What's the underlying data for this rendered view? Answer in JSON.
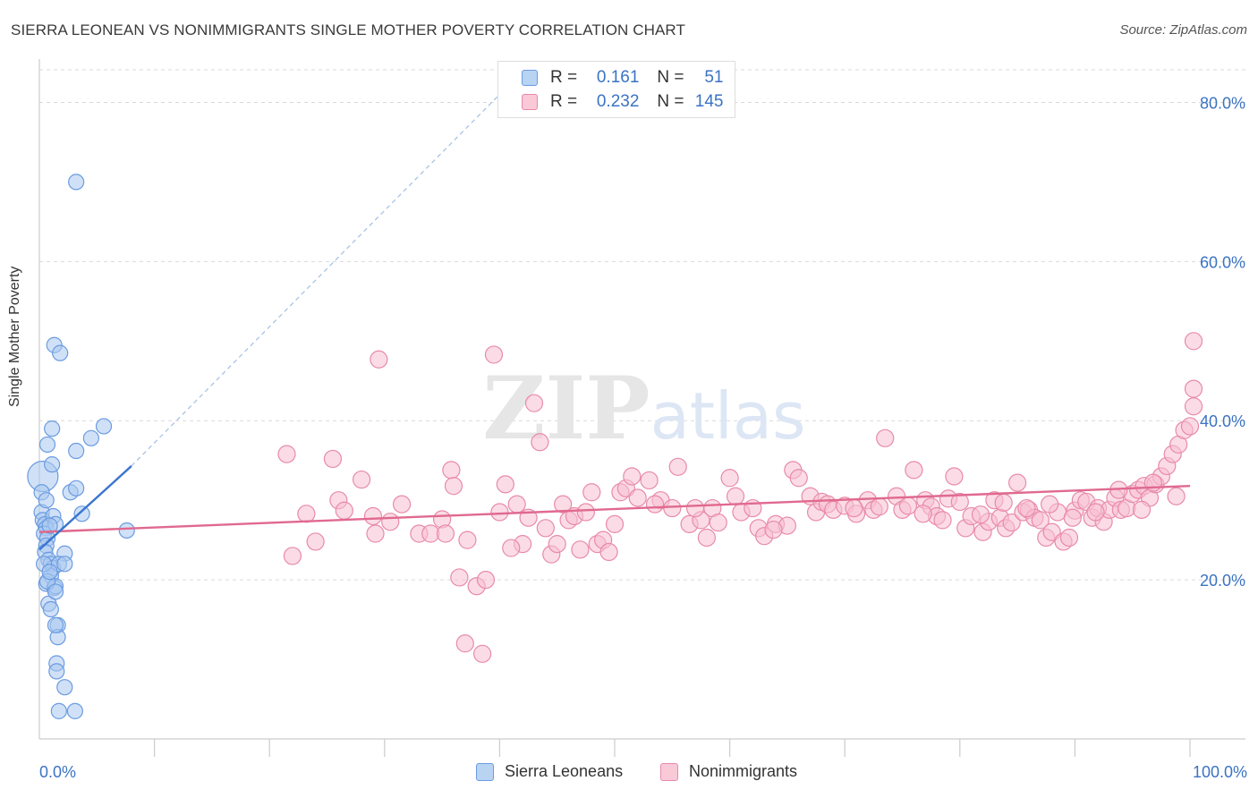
{
  "title": "SIERRA LEONEAN VS NONIMMIGRANTS SINGLE MOTHER POVERTY CORRELATION CHART",
  "source": "Source: ZipAtlas.com",
  "watermark": "ZIPatlas",
  "colors": {
    "blue_fill": "#a9c8f0",
    "blue_stroke": "#6a9be0",
    "blue_line": "#3a76d0",
    "pink_fill": "#f7bfd1",
    "pink_stroke": "#e88aaa",
    "pink_line": "#e0698f",
    "axis_text": "#3b73c4",
    "grid": "#d9d9d9"
  },
  "legend": {
    "rows": [
      {
        "r_label": "R =",
        "r_value": "0.161",
        "n_label": "N =",
        "n_value": "51"
      },
      {
        "r_label": "R =",
        "r_value": "0.232",
        "n_label": "N =",
        "n_value": "145"
      }
    ]
  },
  "chart_data": {
    "type": "scatter",
    "xlabel": "",
    "ylabel": "Single Mother Poverty",
    "xlim": [
      0,
      100
    ],
    "ylim": [
      0,
      85
    ],
    "x_tick_labels": [
      "0.0%",
      "100.0%"
    ],
    "y_ticks": [
      20,
      40,
      60,
      80
    ],
    "y_tick_labels": [
      "20.0%",
      "40.0%",
      "60.0%",
      "80.0%"
    ],
    "grid": "horizontal dashed",
    "series": [
      {
        "name": "Sierra Leoneans",
        "r": 0.161,
        "n": 51,
        "trend": {
          "x0": 0.0,
          "y0": 23.8,
          "x1": 8.0,
          "y1": 34.3,
          "dashed_to_x": 40.0,
          "dashed_to_y": 81.0
        },
        "points": [
          [
            0.3,
            33.0
          ],
          [
            0.2,
            31.0
          ],
          [
            0.2,
            28.5
          ],
          [
            0.3,
            27.5
          ],
          [
            0.5,
            27.0
          ],
          [
            0.6,
            26.5
          ],
          [
            0.4,
            25.8
          ],
          [
            0.7,
            25.2
          ],
          [
            0.6,
            24.3
          ],
          [
            0.5,
            23.5
          ],
          [
            0.8,
            22.5
          ],
          [
            1.0,
            22.0
          ],
          [
            1.2,
            21.5
          ],
          [
            1.0,
            20.5
          ],
          [
            0.6,
            19.5
          ],
          [
            1.3,
            19.0
          ],
          [
            0.8,
            17.0
          ],
          [
            1.0,
            16.3
          ],
          [
            0.4,
            22.0
          ],
          [
            1.2,
            28.0
          ],
          [
            1.4,
            27.0
          ],
          [
            0.9,
            26.8
          ],
          [
            0.6,
            30.0
          ],
          [
            1.1,
            34.5
          ],
          [
            0.7,
            37.0
          ],
          [
            1.1,
            39.0
          ],
          [
            1.3,
            49.5
          ],
          [
            1.8,
            48.5
          ],
          [
            3.2,
            70.0
          ],
          [
            2.7,
            31.0
          ],
          [
            3.2,
            31.5
          ],
          [
            3.2,
            36.2
          ],
          [
            4.5,
            37.8
          ],
          [
            5.6,
            39.3
          ],
          [
            3.7,
            28.3
          ],
          [
            7.6,
            26.2
          ],
          [
            2.2,
            23.3
          ],
          [
            1.7,
            22.0
          ],
          [
            2.2,
            22.0
          ],
          [
            1.4,
            19.2
          ],
          [
            0.7,
            19.8
          ],
          [
            1.6,
            14.3
          ],
          [
            1.6,
            12.8
          ],
          [
            1.4,
            14.3
          ],
          [
            1.5,
            9.5
          ],
          [
            1.5,
            8.5
          ],
          [
            2.2,
            6.5
          ],
          [
            1.7,
            3.5
          ],
          [
            3.1,
            3.5
          ],
          [
            1.4,
            18.5
          ],
          [
            0.9,
            21.0
          ]
        ]
      },
      {
        "name": "Nonimmigrants",
        "r": 0.232,
        "n": 145,
        "trend": {
          "x0": 0.0,
          "y0": 26.0,
          "x1": 100.0,
          "y1": 31.8
        },
        "points": [
          [
            21.5,
            35.8
          ],
          [
            25.5,
            35.2
          ],
          [
            23.2,
            28.3
          ],
          [
            24.0,
            24.8
          ],
          [
            26.0,
            30.0
          ],
          [
            22.0,
            23.0
          ],
          [
            26.5,
            28.7
          ],
          [
            28.0,
            32.6
          ],
          [
            29.0,
            28.0
          ],
          [
            29.2,
            25.8
          ],
          [
            30.5,
            27.3
          ],
          [
            31.5,
            29.5
          ],
          [
            33.0,
            25.8
          ],
          [
            34.0,
            25.8
          ],
          [
            35.0,
            27.6
          ],
          [
            35.3,
            25.8
          ],
          [
            35.8,
            33.8
          ],
          [
            36.0,
            31.8
          ],
          [
            37.2,
            25.0
          ],
          [
            36.5,
            20.3
          ],
          [
            38.0,
            19.2
          ],
          [
            38.8,
            20.0
          ],
          [
            39.5,
            48.3
          ],
          [
            40.0,
            28.5
          ],
          [
            40.5,
            32.0
          ],
          [
            41.5,
            29.5
          ],
          [
            42.0,
            24.5
          ],
          [
            42.5,
            27.8
          ],
          [
            43.0,
            42.2
          ],
          [
            43.5,
            37.3
          ],
          [
            44.0,
            26.5
          ],
          [
            44.5,
            23.2
          ],
          [
            45.0,
            24.5
          ],
          [
            45.5,
            29.5
          ],
          [
            46.0,
            27.5
          ],
          [
            46.5,
            28.0
          ],
          [
            47.0,
            23.8
          ],
          [
            48.0,
            31.0
          ],
          [
            48.5,
            24.5
          ],
          [
            49.0,
            25.0
          ],
          [
            49.5,
            23.5
          ],
          [
            50.0,
            27.0
          ],
          [
            50.5,
            31.0
          ],
          [
            51.0,
            31.5
          ],
          [
            51.5,
            33.0
          ],
          [
            52.0,
            30.3
          ],
          [
            53.0,
            32.5
          ],
          [
            54.0,
            30.0
          ],
          [
            55.0,
            29.0
          ],
          [
            55.5,
            34.2
          ],
          [
            56.5,
            27.0
          ],
          [
            57.5,
            27.5
          ],
          [
            58.0,
            25.3
          ],
          [
            58.5,
            29.0
          ],
          [
            59.0,
            27.2
          ],
          [
            60.0,
            32.8
          ],
          [
            60.5,
            30.5
          ],
          [
            61.0,
            28.5
          ],
          [
            62.0,
            29.0
          ],
          [
            62.5,
            26.5
          ],
          [
            63.0,
            25.5
          ],
          [
            64.0,
            27.0
          ],
          [
            65.0,
            26.8
          ],
          [
            65.5,
            33.8
          ],
          [
            66.0,
            32.8
          ],
          [
            67.0,
            30.5
          ],
          [
            67.5,
            28.5
          ],
          [
            68.0,
            29.8
          ],
          [
            68.5,
            29.5
          ],
          [
            69.0,
            28.8
          ],
          [
            70.0,
            29.3
          ],
          [
            71.0,
            28.3
          ],
          [
            72.0,
            30.0
          ],
          [
            72.5,
            28.8
          ],
          [
            73.0,
            29.2
          ],
          [
            73.5,
            37.8
          ],
          [
            74.5,
            30.5
          ],
          [
            75.0,
            28.8
          ],
          [
            75.5,
            29.3
          ],
          [
            76.0,
            33.8
          ],
          [
            77.0,
            30.0
          ],
          [
            77.5,
            29.2
          ],
          [
            78.0,
            28.0
          ],
          [
            78.5,
            27.5
          ],
          [
            79.0,
            30.2
          ],
          [
            79.5,
            33.0
          ],
          [
            80.0,
            29.8
          ],
          [
            80.5,
            26.5
          ],
          [
            81.0,
            28.0
          ],
          [
            82.0,
            26.0
          ],
          [
            82.5,
            27.3
          ],
          [
            83.0,
            30.0
          ],
          [
            83.5,
            27.8
          ],
          [
            84.0,
            26.5
          ],
          [
            84.5,
            27.2
          ],
          [
            85.0,
            32.2
          ],
          [
            85.5,
            28.5
          ],
          [
            86.0,
            28.8
          ],
          [
            86.5,
            27.8
          ],
          [
            87.0,
            27.5
          ],
          [
            87.5,
            25.3
          ],
          [
            88.0,
            26.0
          ],
          [
            88.5,
            28.5
          ],
          [
            89.0,
            24.8
          ],
          [
            89.5,
            25.3
          ],
          [
            90.0,
            28.7
          ],
          [
            90.5,
            30.0
          ],
          [
            91.0,
            29.8
          ],
          [
            91.5,
            27.8
          ],
          [
            92.0,
            29.0
          ],
          [
            92.5,
            27.3
          ],
          [
            93.0,
            28.8
          ],
          [
            93.5,
            30.3
          ],
          [
            94.0,
            28.8
          ],
          [
            94.5,
            29.0
          ],
          [
            95.0,
            30.8
          ],
          [
            95.5,
            31.3
          ],
          [
            96.0,
            31.8
          ],
          [
            96.5,
            30.3
          ],
          [
            97.0,
            32.0
          ],
          [
            97.5,
            33.0
          ],
          [
            98.0,
            34.3
          ],
          [
            98.5,
            35.8
          ],
          [
            99.0,
            37.0
          ],
          [
            99.5,
            38.8
          ],
          [
            100.0,
            39.3
          ],
          [
            100.5,
            41.8
          ],
          [
            101.0,
            44.0
          ],
          [
            101.5,
            50.0
          ],
          [
            98.8,
            30.5
          ],
          [
            96.8,
            32.2
          ],
          [
            95.8,
            28.8
          ],
          [
            93.8,
            31.3
          ],
          [
            91.8,
            28.5
          ],
          [
            89.8,
            27.8
          ],
          [
            87.8,
            29.5
          ],
          [
            85.8,
            29.0
          ],
          [
            83.8,
            29.7
          ],
          [
            81.8,
            28.2
          ],
          [
            76.8,
            28.3
          ],
          [
            70.8,
            29.0
          ],
          [
            63.8,
            26.3
          ],
          [
            57.0,
            29.0
          ],
          [
            53.5,
            29.5
          ],
          [
            47.5,
            28.5
          ],
          [
            41.0,
            24.0
          ],
          [
            38.5,
            10.7
          ],
          [
            37.0,
            12.0
          ],
          [
            29.5,
            47.7
          ]
        ]
      }
    ]
  },
  "bottom_legend": [
    "Sierra Leoneans",
    "Nonimmigrants"
  ]
}
